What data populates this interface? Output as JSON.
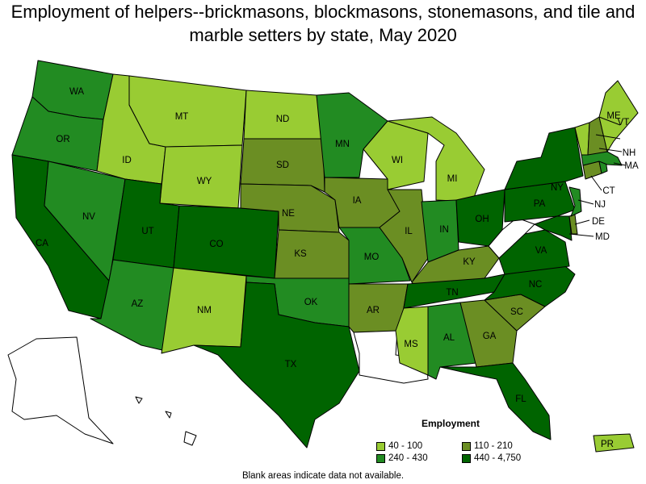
{
  "title": "Employment of helpers--brickmasons, blockmasons, stonemasons, and tile and marble setters by state, May 2020",
  "legend": {
    "title": "Employment",
    "items": [
      {
        "label": "40 - 100",
        "color": "#99cc33"
      },
      {
        "label": "110 - 210",
        "color": "#6b8e23"
      },
      {
        "label": "240 - 430",
        "color": "#228b22"
      },
      {
        "label": "440 - 4,750",
        "color": "#006400"
      }
    ]
  },
  "footnote": "Blank areas indicate data not available.",
  "states": {
    "WA": {
      "label": "WA",
      "color": "#228b22"
    },
    "OR": {
      "label": "OR",
      "color": "#228b22"
    },
    "CA": {
      "label": "CA",
      "color": "#006400"
    },
    "NV": {
      "label": "NV",
      "color": "#228b22"
    },
    "ID": {
      "label": "ID",
      "color": "#99cc33"
    },
    "MT": {
      "label": "MT",
      "color": "#99cc33"
    },
    "WY": {
      "label": "WY",
      "color": "#99cc33"
    },
    "UT": {
      "label": "UT",
      "color": "#006400"
    },
    "AZ": {
      "label": "AZ",
      "color": "#228b22"
    },
    "CO": {
      "label": "CO",
      "color": "#006400"
    },
    "NM": {
      "label": "NM",
      "color": "#99cc33"
    },
    "ND": {
      "label": "ND",
      "color": "#99cc33"
    },
    "SD": {
      "label": "SD",
      "color": "#6b8e23"
    },
    "NE": {
      "label": "NE",
      "color": "#6b8e23"
    },
    "KS": {
      "label": "KS",
      "color": "#6b8e23"
    },
    "OK": {
      "label": "OK",
      "color": "#228b22"
    },
    "TX": {
      "label": "TX",
      "color": "#006400"
    },
    "MN": {
      "label": "MN",
      "color": "#228b22"
    },
    "IA": {
      "label": "IA",
      "color": "#6b8e23"
    },
    "MO": {
      "label": "MO",
      "color": "#228b22"
    },
    "AR": {
      "label": "AR",
      "color": "#6b8e23"
    },
    "LA": {
      "label": "",
      "color": "#ffffff"
    },
    "WI": {
      "label": "WI",
      "color": "#99cc33"
    },
    "IL": {
      "label": "IL",
      "color": "#6b8e23"
    },
    "MI": {
      "label": "MI",
      "color": "#99cc33"
    },
    "IN": {
      "label": "IN",
      "color": "#228b22"
    },
    "OH": {
      "label": "OH",
      "color": "#006400"
    },
    "KY": {
      "label": "KY",
      "color": "#6b8e23"
    },
    "TN": {
      "label": "TN",
      "color": "#006400"
    },
    "MS": {
      "label": "MS",
      "color": "#99cc33"
    },
    "AL": {
      "label": "AL",
      "color": "#228b22"
    },
    "GA": {
      "label": "GA",
      "color": "#6b8e23"
    },
    "FL": {
      "label": "FL",
      "color": "#006400"
    },
    "SC": {
      "label": "SC",
      "color": "#6b8e23"
    },
    "NC": {
      "label": "NC",
      "color": "#006400"
    },
    "VA": {
      "label": "VA",
      "color": "#006400"
    },
    "WV": {
      "label": "",
      "color": "#ffffff"
    },
    "PA": {
      "label": "PA",
      "color": "#006400"
    },
    "NY": {
      "label": "NY",
      "color": "#006400"
    },
    "MD": {
      "label": "MD",
      "color": "#006400"
    },
    "DE": {
      "label": "DE",
      "color": "#6b8e23"
    },
    "NJ": {
      "label": "NJ",
      "color": "#228b22"
    },
    "CT": {
      "label": "CT",
      "color": "#6b8e23"
    },
    "RI": {
      "label": "",
      "color": "#228b22"
    },
    "MA": {
      "label": "MA",
      "color": "#228b22"
    },
    "VT": {
      "label": "VT",
      "color": "#99cc33"
    },
    "NH": {
      "label": "NH",
      "color": "#6b8e23"
    },
    "ME": {
      "label": "ME",
      "color": "#99cc33"
    },
    "AK": {
      "label": "",
      "color": "#ffffff"
    },
    "HI": {
      "label": "",
      "color": "#ffffff"
    },
    "PR": {
      "label": "PR",
      "color": "#99cc33"
    }
  }
}
